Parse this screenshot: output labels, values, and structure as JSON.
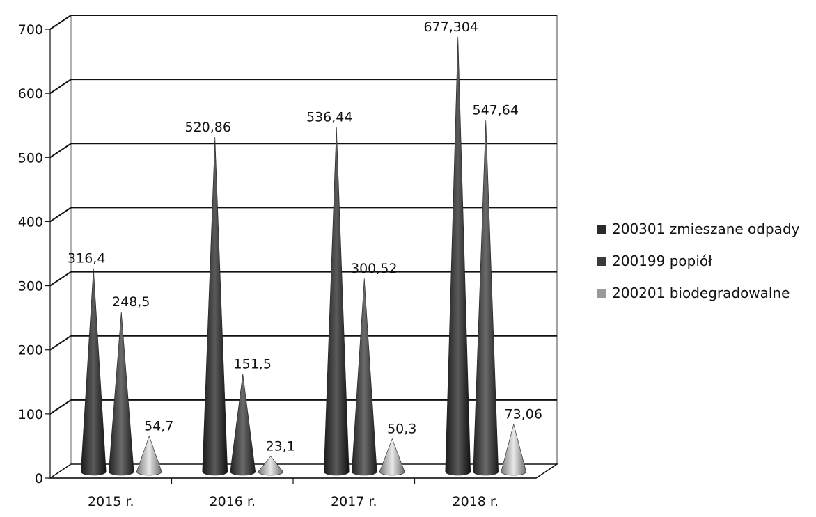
{
  "chart_data": {
    "type": "bar",
    "bar_shape": "cone",
    "categories": [
      "2015 r.",
      "2016 r.",
      "2017 r.",
      "2018 r."
    ],
    "series": [
      {
        "name": "200301 zmieszane odpady",
        "values": [
          316.4,
          520.86,
          536.44,
          677.304
        ],
        "labels": [
          "316,4",
          "520,86",
          "536,44",
          "677,304"
        ],
        "color": "#2a2a2a"
      },
      {
        "name": "200199 popiół",
        "values": [
          248.5,
          151.5,
          300.52,
          547.64
        ],
        "labels": [
          "248,5",
          "151,5",
          "300,52",
          "547,64"
        ],
        "color": "#3a3a3a"
      },
      {
        "name": "200201 biodegradowalne",
        "values": [
          54.7,
          23.1,
          50.3,
          73.06
        ],
        "labels": [
          "54,7",
          "23,1",
          "50,3",
          "73,06"
        ],
        "color": "#9a9a9a"
      }
    ],
    "y_ticks": [
      "0",
      "100",
      "200",
      "300",
      "400",
      "500",
      "600",
      "700"
    ],
    "ylim": [
      0,
      700
    ],
    "grid": true,
    "legend_position": "right"
  }
}
